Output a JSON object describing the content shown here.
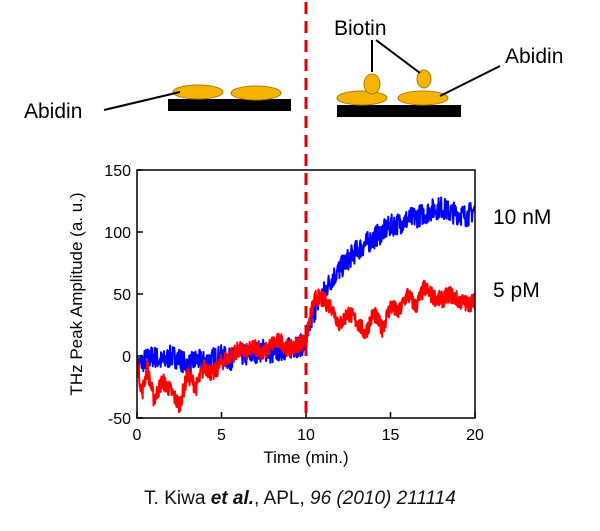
{
  "chart_data": {
    "type": "line",
    "xlabel": "Time (min.)",
    "ylabel": "THz Peak Amplitude (a. u.)",
    "xlim": [
      0,
      20
    ],
    "ylim": [
      -50,
      150
    ],
    "xticks": [
      0,
      5,
      10,
      15,
      20
    ],
    "yticks": [
      -50,
      0,
      50,
      100,
      150
    ],
    "grid": false,
    "event_marker_x": 10,
    "series": [
      {
        "name": "10 nM",
        "color": "#0000ff",
        "x": [
          0,
          0.5,
          1,
          1.5,
          2,
          2.5,
          3,
          3.5,
          4,
          4.5,
          5,
          5.5,
          6,
          6.5,
          7,
          7.5,
          8,
          8.5,
          9,
          9.5,
          10,
          10.3,
          10.6,
          11,
          11.5,
          12,
          12.5,
          13,
          13.5,
          14,
          14.5,
          15,
          15.5,
          16,
          16.5,
          17,
          17.5,
          18,
          18.5,
          19,
          19.5,
          20
        ],
        "y": [
          -8,
          -3,
          0,
          -5,
          0,
          -2,
          -8,
          -3,
          -5,
          -2,
          0,
          -3,
          2,
          0,
          3,
          5,
          2,
          5,
          6,
          8,
          10,
          28,
          40,
          50,
          62,
          70,
          78,
          85,
          90,
          95,
          100,
          105,
          107,
          110,
          112,
          115,
          118,
          120,
          116,
          115,
          113,
          118
        ]
      },
      {
        "name": "5 pM",
        "color": "#ff0000",
        "x": [
          0,
          0.3,
          0.6,
          1,
          1.5,
          2,
          2.5,
          3,
          3.5,
          4,
          4.5,
          5,
          5.5,
          6,
          6.5,
          7,
          7.5,
          8,
          8.5,
          9,
          9.5,
          10,
          10.3,
          10.6,
          11,
          11.5,
          12,
          12.5,
          13,
          13.5,
          14,
          14.5,
          15,
          15.5,
          16,
          16.5,
          17,
          17.5,
          18,
          18.5,
          19,
          19.5,
          20
        ],
        "y": [
          -5,
          -30,
          -10,
          -35,
          -20,
          -28,
          -40,
          -15,
          -25,
          -8,
          -15,
          -5,
          0,
          5,
          3,
          8,
          2,
          10,
          12,
          5,
          10,
          12,
          35,
          48,
          45,
          40,
          25,
          35,
          28,
          18,
          35,
          22,
          40,
          35,
          50,
          40,
          55,
          48,
          45,
          50,
          45,
          42,
          44
        ]
      }
    ]
  },
  "schematic": {
    "abidin_left_label": "Abidin",
    "biotin_label": "Biotin",
    "abidin_right_label": "Abidin",
    "disc_color": "#f5b400",
    "substrate_color": "#000000"
  },
  "citation": {
    "authors": "T. Kiwa",
    "et_al": "et al.",
    "journal": "APL,",
    "ref": "96 (2010) 211114"
  }
}
